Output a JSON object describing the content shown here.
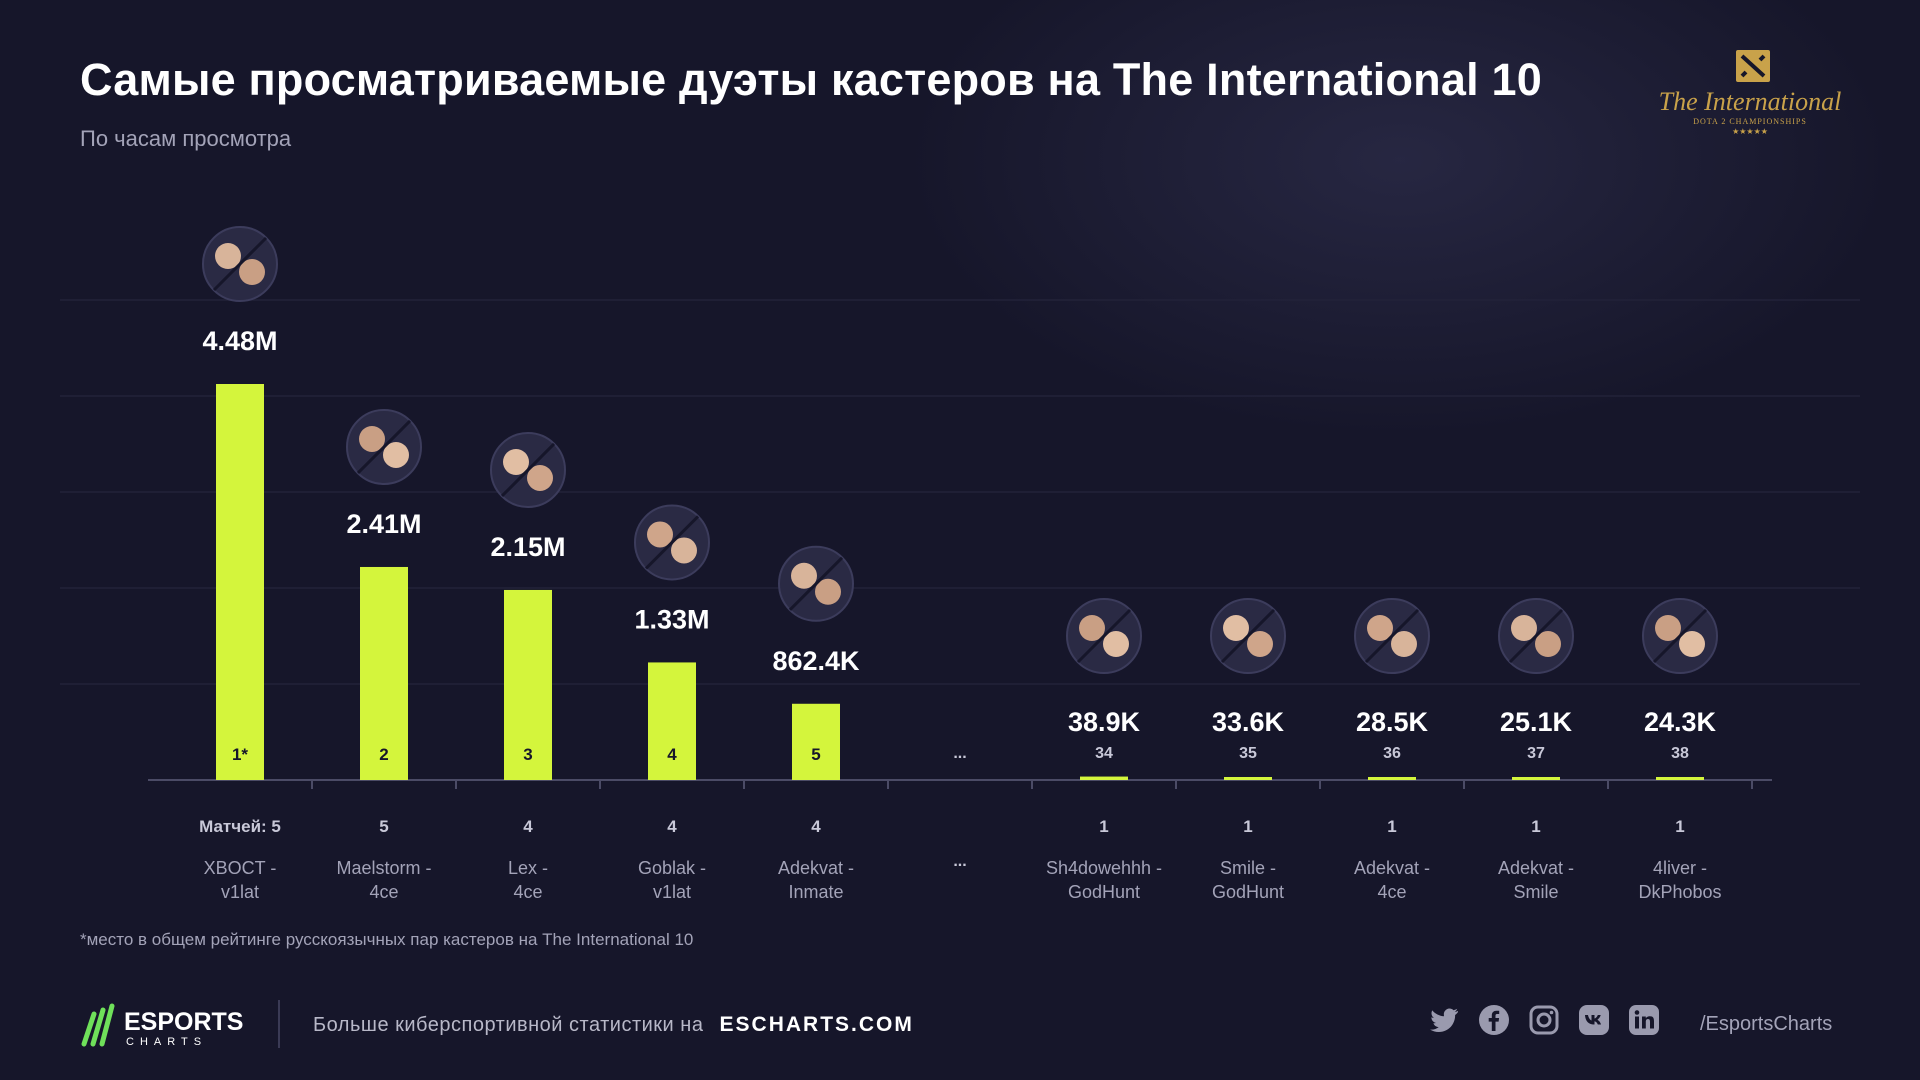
{
  "header": {
    "title": "Самые просматриваемые дуэты кастеров на The International 10",
    "subtitle": "По часам просмотра",
    "event_logo_text": "The International",
    "event_logo_sub": "DOTA 2 CHAMPIONSHIPS"
  },
  "chart_data": {
    "type": "bar",
    "metric": "hours watched",
    "accent_color": "#d4f53c",
    "grid": true,
    "matches_prefix": "Матчей: ",
    "gap_marker": "...",
    "bars": [
      {
        "rank": "1*",
        "label_line1": "XBOCT -",
        "label_line2": "v1lat",
        "value": 4480000,
        "value_label": "4.48M",
        "matches": 5
      },
      {
        "rank": "2",
        "label_line1": "Maelstorm -",
        "label_line2": "4ce",
        "value": 2410000,
        "value_label": "2.41M",
        "matches": 5
      },
      {
        "rank": "3",
        "label_line1": "Lex -",
        "label_line2": "4ce",
        "value": 2150000,
        "value_label": "2.15M",
        "matches": 4
      },
      {
        "rank": "4",
        "label_line1": "Goblak -",
        "label_line2": "v1lat",
        "value": 1330000,
        "value_label": "1.33M",
        "matches": 4
      },
      {
        "rank": "5",
        "label_line1": "Adekvat -",
        "label_line2": "Inmate",
        "value": 862400,
        "value_label": "862.4K",
        "matches": 4
      },
      {
        "rank": "34",
        "label_line1": "Sh4dowehhh -",
        "label_line2": "GodHunt",
        "value": 38900,
        "value_label": "38.9K",
        "matches": 1
      },
      {
        "rank": "35",
        "label_line1": "Smile -",
        "label_line2": "GodHunt",
        "value": 33600,
        "value_label": "33.6K",
        "matches": 1
      },
      {
        "rank": "36",
        "label_line1": "Adekvat -",
        "label_line2": "4ce",
        "value": 28500,
        "value_label": "28.5K",
        "matches": 1
      },
      {
        "rank": "37",
        "label_line1": "Adekvat -",
        "label_line2": "Smile",
        "value": 25100,
        "value_label": "25.1K",
        "matches": 1
      },
      {
        "rank": "38",
        "label_line1": "4liver -",
        "label_line2": "DkPhobos",
        "value": 24300,
        "value_label": "24.3K",
        "matches": 1
      }
    ]
  },
  "footnote": "*место в общем рейтинге русскоязычных пар кастеров на The International 10",
  "footer": {
    "brand": "ESPORTS",
    "brand_sub": "CHARTS",
    "promo_text": "Больше киберспортивной статистики на",
    "promo_link": "ESCHARTS.COM",
    "handle": "/EsportsCharts",
    "social_icons": [
      "twitter-icon",
      "facebook-icon",
      "instagram-icon",
      "vk-icon",
      "linkedin-icon"
    ]
  }
}
